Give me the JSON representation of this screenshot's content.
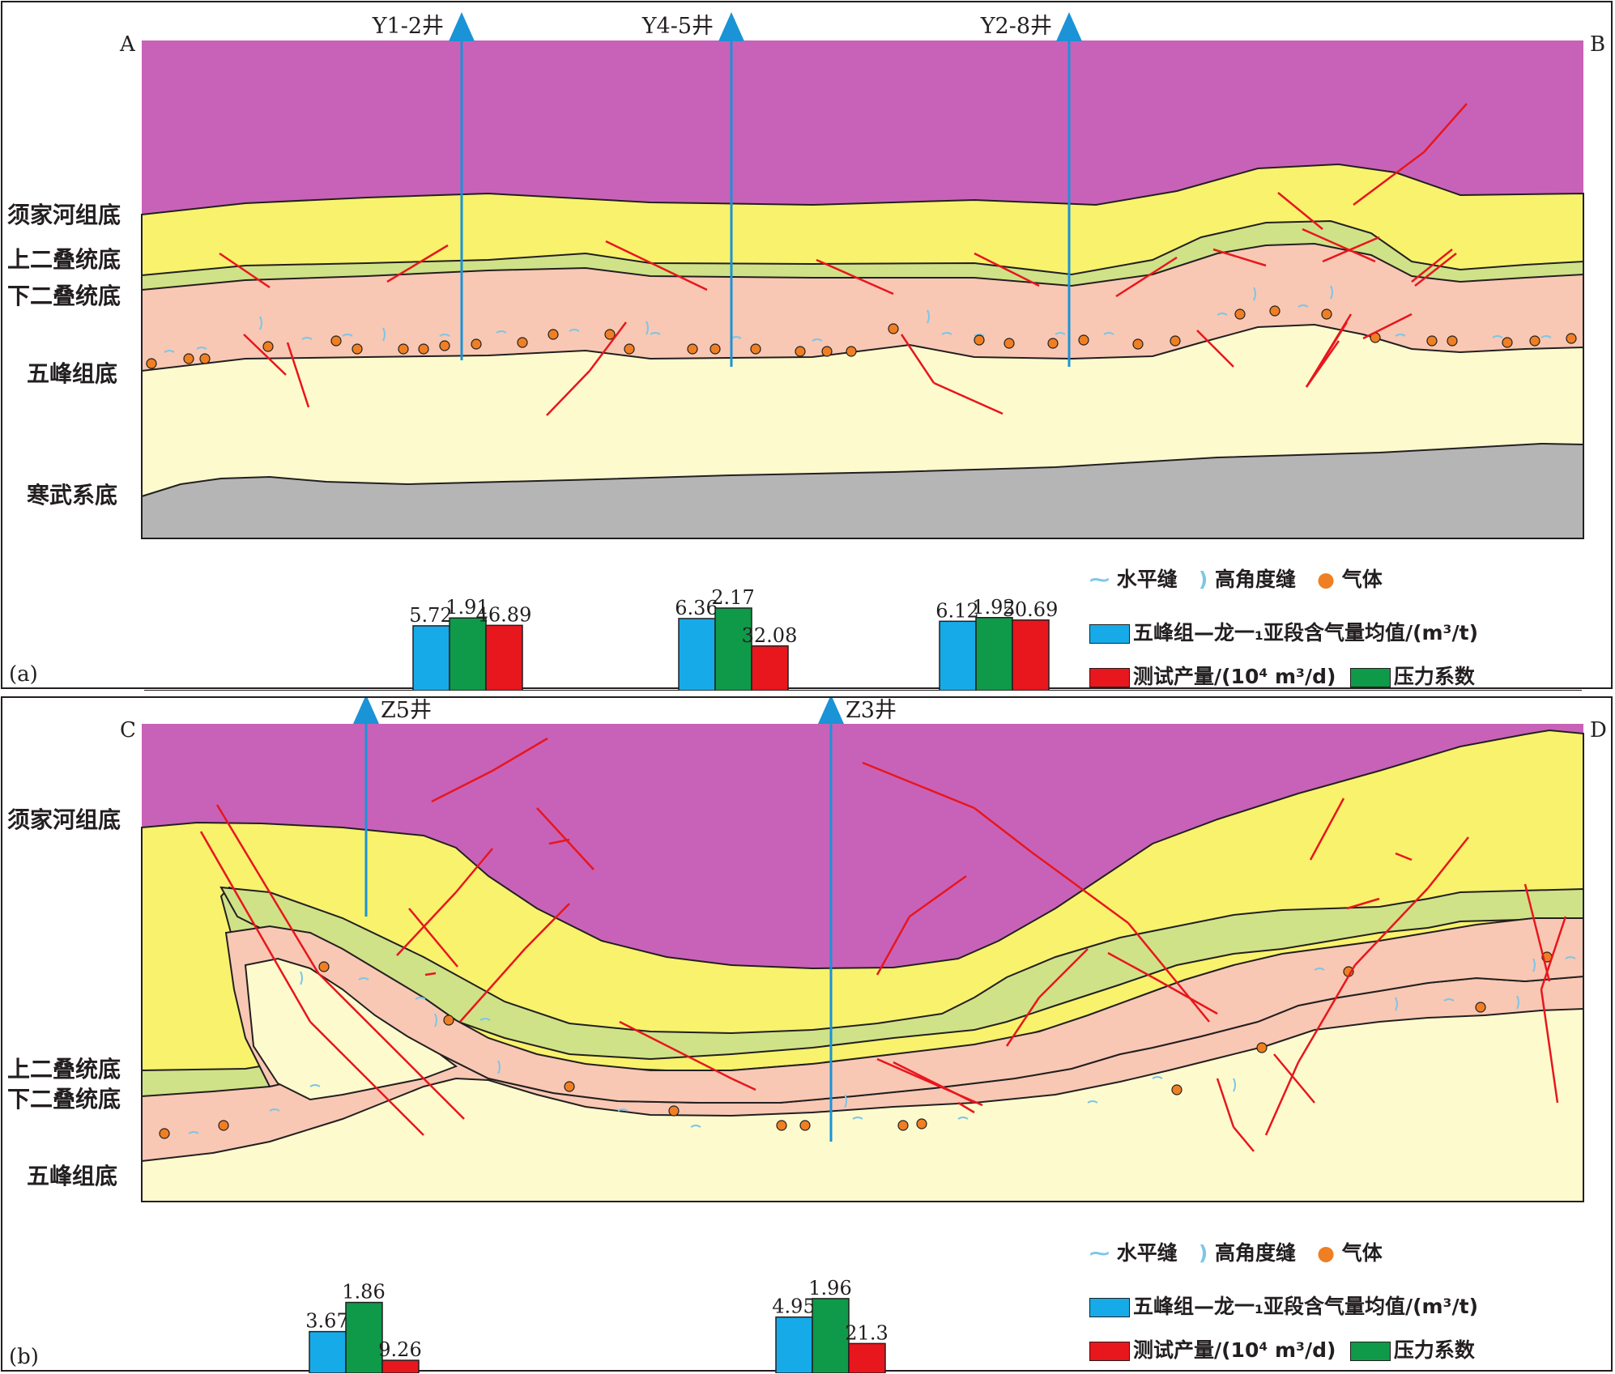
{
  "panel_a": {
    "tag": "(a)",
    "corner_left": "A",
    "corner_right": "B",
    "wells": [
      {
        "name": "Y1-2井",
        "gas": "5.72",
        "pressure": "1.91",
        "rate": "46.89"
      },
      {
        "name": "Y4-5井",
        "gas": "6.36",
        "pressure": "2.17",
        "rate": "32.08"
      },
      {
        "name": "Y2-8井",
        "gas": "6.12",
        "pressure": "1.92",
        "rate": "50.69"
      }
    ],
    "horizons": [
      "须家河组底",
      "上二叠统底",
      "下二叠统底",
      "五峰组底",
      "寒武系底"
    ]
  },
  "panel_b": {
    "tag": "(b)",
    "corner_left": "C",
    "corner_right": "D",
    "wells": [
      {
        "name": "Z5井",
        "gas": "3.67",
        "pressure": "1.86",
        "rate": "9.26"
      },
      {
        "name": "Z3井",
        "gas": "4.95",
        "pressure": "1.96",
        "rate": "21.3"
      }
    ],
    "horizons": [
      "须家河组底",
      "上二叠统底",
      "下二叠统底",
      "五峰组底"
    ]
  },
  "legend": {
    "horizontal_fracture": "水平缝",
    "high_angle_fracture": "高角度缝",
    "gas": "气体",
    "gas_content": "五峰组—龙一₁亚段含气量均值/(m³/t)",
    "test_rate": "测试产量/(10⁴ m³/d)",
    "pressure_coef": "压力系数"
  },
  "colors": {
    "purple": "#c862b8",
    "yellow": "#f8f26d",
    "green": "#cfe288",
    "pink": "#f8c8b4",
    "cream": "#fdfbce",
    "gray": "#b5b5b5",
    "fault": "#e8161d",
    "well": "#1a93d7",
    "bar_blue": "#16abe8",
    "bar_green": "#0e9a48",
    "bar_red": "#e8161d"
  }
}
